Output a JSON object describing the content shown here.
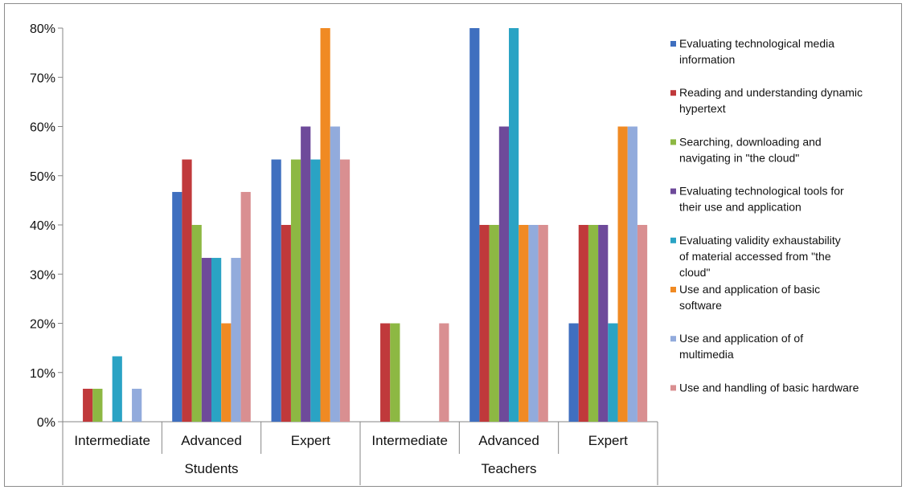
{
  "chart_data": {
    "type": "bar",
    "groups": [
      {
        "label": "Students",
        "categories": [
          "Intermediate",
          "Advanced",
          "Expert"
        ]
      },
      {
        "label": "Teachers",
        "categories": [
          "Intermediate",
          "Advanced",
          "Expert"
        ]
      }
    ],
    "categories": [
      "Intermediate",
      "Advanced",
      "Expert",
      "Intermediate",
      "Advanced",
      "Expert"
    ],
    "ylim": [
      0,
      80
    ],
    "yticks": [
      "0%",
      "10%",
      "20%",
      "30%",
      "40%",
      "50%",
      "60%",
      "70%",
      "80%"
    ],
    "grid": false,
    "legend_position": "right",
    "series": [
      {
        "name": "Evaluating technological media information",
        "color": "#3f6fbf",
        "values": [
          0,
          46.7,
          53.3,
          0,
          80,
          20
        ]
      },
      {
        "name": "Reading and understanding dynamic hypertext",
        "color": "#c0393b",
        "values": [
          6.7,
          53.3,
          40,
          20,
          40,
          40
        ]
      },
      {
        "name": "Searching, downloading and navigating in \"the cloud\"",
        "color": "#8db843",
        "values": [
          6.7,
          40,
          53.3,
          20,
          40,
          40
        ]
      },
      {
        "name": "Evaluating technological tools for their use and application",
        "color": "#6e4a9a",
        "values": [
          0,
          33.3,
          60,
          0,
          60,
          40
        ]
      },
      {
        "name": "Evaluating validity exhaustability of material accessed from \"the cloud\"",
        "color": "#2aa3c4",
        "values": [
          13.3,
          33.3,
          53.3,
          0,
          80,
          20
        ]
      },
      {
        "name": "Use and application of basic software",
        "color": "#f08a23",
        "values": [
          0,
          20,
          80,
          0,
          40,
          60
        ]
      },
      {
        "name": "Use and application of of multimedia",
        "color": "#92abdc",
        "values": [
          6.7,
          33.3,
          60,
          0,
          40,
          60
        ]
      },
      {
        "name": "Use and handling of basic hardware",
        "color": "#d98f91",
        "values": [
          0,
          46.7,
          53.3,
          20,
          40,
          40
        ]
      }
    ]
  }
}
